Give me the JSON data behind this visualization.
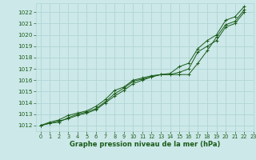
{
  "title": "Graphe pression niveau de la mer (hPa)",
  "bg_color": "#cce8e8",
  "grid_color": "#b0d4d4",
  "line_color": "#1a5c1a",
  "marker_color": "#1a5c1a",
  "xlim": [
    -0.5,
    23
  ],
  "ylim": [
    1011.5,
    1022.8
  ],
  "yticks": [
    1012,
    1013,
    1014,
    1015,
    1016,
    1017,
    1018,
    1019,
    1020,
    1021,
    1022
  ],
  "xticks": [
    0,
    1,
    2,
    3,
    4,
    5,
    6,
    7,
    8,
    9,
    10,
    11,
    12,
    13,
    14,
    15,
    16,
    17,
    18,
    19,
    20,
    21,
    22,
    23
  ],
  "series": [
    [
      1012.0,
      1012.2,
      1012.4,
      1012.6,
      1012.9,
      1013.1,
      1013.4,
      1014.0,
      1014.6,
      1015.1,
      1015.7,
      1016.0,
      1016.3,
      1016.5,
      1016.5,
      1016.7,
      1017.0,
      1018.5,
      1019.0,
      1019.5,
      1020.7,
      1021.0,
      1022.0
    ],
    [
      1012.0,
      1012.2,
      1012.3,
      1012.7,
      1013.0,
      1013.2,
      1013.5,
      1014.1,
      1014.8,
      1015.3,
      1015.9,
      1016.1,
      1016.3,
      1016.5,
      1016.5,
      1016.5,
      1016.5,
      1017.5,
      1018.6,
      1019.8,
      1020.9,
      1021.2,
      1022.2
    ],
    [
      1012.0,
      1012.3,
      1012.5,
      1012.9,
      1013.1,
      1013.3,
      1013.7,
      1014.3,
      1015.1,
      1015.4,
      1016.0,
      1016.2,
      1016.4,
      1016.5,
      1016.6,
      1017.2,
      1017.5,
      1018.8,
      1019.5,
      1020.0,
      1021.3,
      1021.6,
      1022.5
    ]
  ],
  "x_values": [
    0,
    1,
    2,
    3,
    4,
    5,
    6,
    7,
    8,
    9,
    10,
    11,
    12,
    13,
    14,
    15,
    16,
    17,
    18,
    19,
    20,
    21,
    22
  ],
  "ytick_fontsize": 5.2,
  "xtick_fontsize": 4.8,
  "xlabel_fontsize": 6.0,
  "linewidth": 0.7,
  "markersize": 2.5,
  "markeredgewidth": 0.7
}
